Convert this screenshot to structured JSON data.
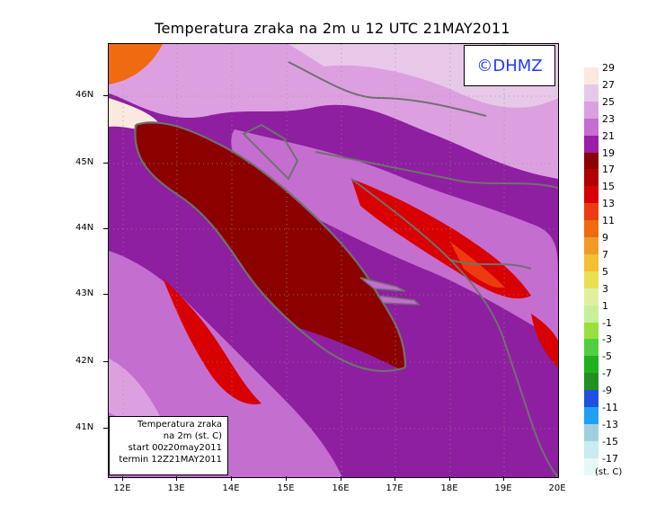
{
  "title": "Temperatura zraka na 2m u 12 UTC 21MAY2011",
  "copyright": "©DHMZ",
  "info_box": {
    "line1": "Temperatura zraka",
    "line2": "na 2m (st. C)",
    "line3": "start 00z20may2011",
    "line4": "termin 12Z21MAY2011"
  },
  "lat_labels": [
    "46N",
    "45N",
    "44N",
    "43N",
    "42N",
    "41N"
  ],
  "lon_labels": [
    "12E",
    "13E",
    "14E",
    "15E",
    "16E",
    "17E",
    "18E",
    "19E",
    "20E"
  ],
  "legend": {
    "unit": "(st. C)",
    "labels": [
      "29",
      "27",
      "25",
      "23",
      "21",
      "19",
      "17",
      "15",
      "13",
      "11",
      "9",
      "7",
      "5",
      "3",
      "1",
      "-1",
      "-3",
      "-5",
      "-7",
      "-9",
      "-11",
      "-13",
      "-15",
      "-17"
    ],
    "colors": [
      "#fbe9df",
      "#e8c8e8",
      "#dca0e0",
      "#c46ed0",
      "#9a1ea8",
      "#8c0000",
      "#b00000",
      "#d80000",
      "#ee3a10",
      "#f06a10",
      "#f29a28",
      "#f2c030",
      "#e8e050",
      "#e0f0a0",
      "#c8f098",
      "#98e040",
      "#50d040",
      "#20b020",
      "#209020",
      "#2050e0",
      "#20a0f0",
      "#a0d0e0",
      "#c8ecf0",
      "#e8f8f8"
    ]
  },
  "region_colors": {
    "sea": "#8c0000",
    "lowland": "#8e1fa0",
    "hills": "#c46ed0",
    "highland": "#dca0e0",
    "alpine": "#e8c8e8",
    "hot": "#d80000",
    "warm": "#ee3a10",
    "coast": "#707070"
  }
}
